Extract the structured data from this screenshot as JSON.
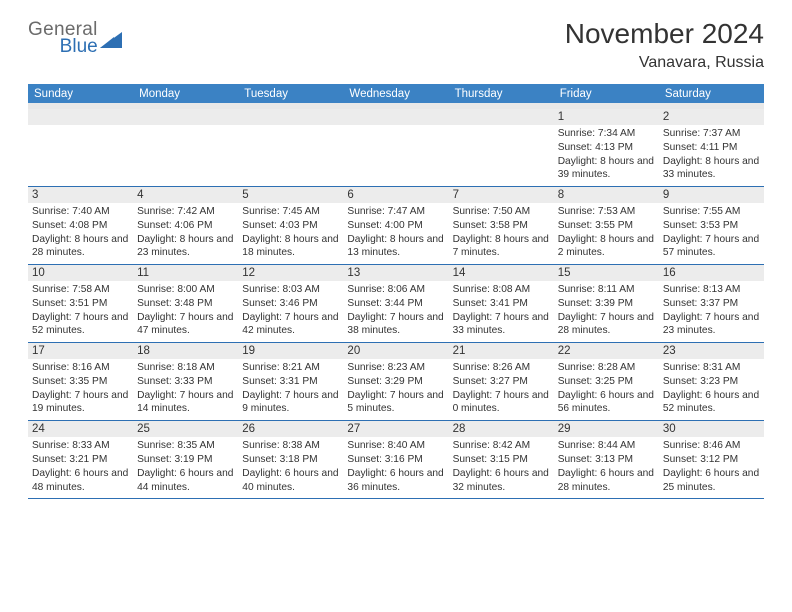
{
  "logo": {
    "text1": "General",
    "text2": "Blue",
    "tri_color": "#2d6fb3",
    "text1_color": "#6b6b6b",
    "text2_color": "#2d6fb3"
  },
  "title": "November 2024",
  "location": "Vanavara, Russia",
  "colors": {
    "header_bg": "#3b82c4",
    "header_text": "#ffffff",
    "daynum_bg": "#ececec",
    "border": "#2d6fb3",
    "spacer_bg": "#e8e8e8",
    "text": "#333333",
    "page_bg": "#ffffff"
  },
  "fonts": {
    "title_size": 28,
    "location_size": 16,
    "day_label_size": 11.5,
    "body_size": 10.2
  },
  "day_labels": [
    "Sunday",
    "Monday",
    "Tuesday",
    "Wednesday",
    "Thursday",
    "Friday",
    "Saturday"
  ],
  "weeks": [
    [
      {
        "empty": true
      },
      {
        "empty": true
      },
      {
        "empty": true
      },
      {
        "empty": true
      },
      {
        "empty": true
      },
      {
        "n": "1",
        "sr": "7:34 AM",
        "ss": "4:13 PM",
        "dl": "8 hours and 39 minutes."
      },
      {
        "n": "2",
        "sr": "7:37 AM",
        "ss": "4:11 PM",
        "dl": "8 hours and 33 minutes."
      }
    ],
    [
      {
        "n": "3",
        "sr": "7:40 AM",
        "ss": "4:08 PM",
        "dl": "8 hours and 28 minutes."
      },
      {
        "n": "4",
        "sr": "7:42 AM",
        "ss": "4:06 PM",
        "dl": "8 hours and 23 minutes."
      },
      {
        "n": "5",
        "sr": "7:45 AM",
        "ss": "4:03 PM",
        "dl": "8 hours and 18 minutes."
      },
      {
        "n": "6",
        "sr": "7:47 AM",
        "ss": "4:00 PM",
        "dl": "8 hours and 13 minutes."
      },
      {
        "n": "7",
        "sr": "7:50 AM",
        "ss": "3:58 PM",
        "dl": "8 hours and 7 minutes."
      },
      {
        "n": "8",
        "sr": "7:53 AM",
        "ss": "3:55 PM",
        "dl": "8 hours and 2 minutes."
      },
      {
        "n": "9",
        "sr": "7:55 AM",
        "ss": "3:53 PM",
        "dl": "7 hours and 57 minutes."
      }
    ],
    [
      {
        "n": "10",
        "sr": "7:58 AM",
        "ss": "3:51 PM",
        "dl": "7 hours and 52 minutes."
      },
      {
        "n": "11",
        "sr": "8:00 AM",
        "ss": "3:48 PM",
        "dl": "7 hours and 47 minutes."
      },
      {
        "n": "12",
        "sr": "8:03 AM",
        "ss": "3:46 PM",
        "dl": "7 hours and 42 minutes."
      },
      {
        "n": "13",
        "sr": "8:06 AM",
        "ss": "3:44 PM",
        "dl": "7 hours and 38 minutes."
      },
      {
        "n": "14",
        "sr": "8:08 AM",
        "ss": "3:41 PM",
        "dl": "7 hours and 33 minutes."
      },
      {
        "n": "15",
        "sr": "8:11 AM",
        "ss": "3:39 PM",
        "dl": "7 hours and 28 minutes."
      },
      {
        "n": "16",
        "sr": "8:13 AM",
        "ss": "3:37 PM",
        "dl": "7 hours and 23 minutes."
      }
    ],
    [
      {
        "n": "17",
        "sr": "8:16 AM",
        "ss": "3:35 PM",
        "dl": "7 hours and 19 minutes."
      },
      {
        "n": "18",
        "sr": "8:18 AM",
        "ss": "3:33 PM",
        "dl": "7 hours and 14 minutes."
      },
      {
        "n": "19",
        "sr": "8:21 AM",
        "ss": "3:31 PM",
        "dl": "7 hours and 9 minutes."
      },
      {
        "n": "20",
        "sr": "8:23 AM",
        "ss": "3:29 PM",
        "dl": "7 hours and 5 minutes."
      },
      {
        "n": "21",
        "sr": "8:26 AM",
        "ss": "3:27 PM",
        "dl": "7 hours and 0 minutes."
      },
      {
        "n": "22",
        "sr": "8:28 AM",
        "ss": "3:25 PM",
        "dl": "6 hours and 56 minutes."
      },
      {
        "n": "23",
        "sr": "8:31 AM",
        "ss": "3:23 PM",
        "dl": "6 hours and 52 minutes."
      }
    ],
    [
      {
        "n": "24",
        "sr": "8:33 AM",
        "ss": "3:21 PM",
        "dl": "6 hours and 48 minutes."
      },
      {
        "n": "25",
        "sr": "8:35 AM",
        "ss": "3:19 PM",
        "dl": "6 hours and 44 minutes."
      },
      {
        "n": "26",
        "sr": "8:38 AM",
        "ss": "3:18 PM",
        "dl": "6 hours and 40 minutes."
      },
      {
        "n": "27",
        "sr": "8:40 AM",
        "ss": "3:16 PM",
        "dl": "6 hours and 36 minutes."
      },
      {
        "n": "28",
        "sr": "8:42 AM",
        "ss": "3:15 PM",
        "dl": "6 hours and 32 minutes."
      },
      {
        "n": "29",
        "sr": "8:44 AM",
        "ss": "3:13 PM",
        "dl": "6 hours and 28 minutes."
      },
      {
        "n": "30",
        "sr": "8:46 AM",
        "ss": "3:12 PM",
        "dl": "6 hours and 25 minutes."
      }
    ]
  ],
  "labels": {
    "sunrise": "Sunrise: ",
    "sunset": "Sunset: ",
    "daylight": "Daylight: "
  }
}
